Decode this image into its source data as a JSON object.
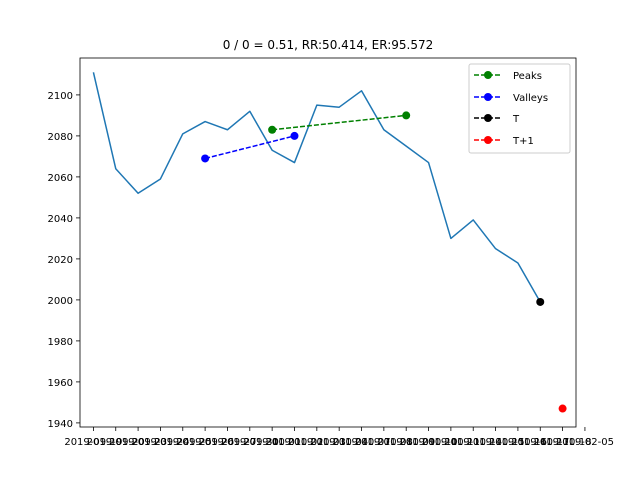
{
  "chart_data": {
    "type": "line",
    "title": "0 / 0 = 0.51, RR:50.414, ER:95.572",
    "xlabel": "",
    "ylabel": "",
    "x_tick_labels": [
      "2019-09-19",
      "2019-09-20",
      "2019-09-23",
      "2019-09-24",
      "2019-09-25",
      "2019-09-26",
      "2019-09-27",
      "2019-09-30",
      "2019-10-01",
      "2019-10-02",
      "2019-10-03",
      "2019-10-04",
      "2019-10-07",
      "2019-10-08",
      "2019-10-09",
      "2019-10-10",
      "2019-10-11",
      "2019-10-14",
      "2019-10-15",
      "2019-10-16",
      "2019-10-17",
      "2019-10-18",
      "2019-02-05"
    ],
    "yticks": [
      1940,
      1960,
      1980,
      2000,
      2020,
      2040,
      2060,
      2080,
      2100
    ],
    "ylim": [
      1938,
      2118
    ],
    "xlim": [
      -0.6,
      21.6
    ],
    "grid": false,
    "legend_position": "top-right",
    "price": {
      "color": "#1f77b4",
      "x": [
        0,
        1,
        2,
        3,
        4,
        5,
        6,
        7,
        8,
        9,
        10,
        11,
        12,
        13,
        14,
        15,
        16,
        17,
        18,
        19,
        20
      ],
      "y": [
        2111,
        2064,
        2052,
        2059,
        2081,
        2087,
        2083,
        2092,
        2073,
        2067,
        2095,
        2094,
        2102,
        2083,
        2075,
        2067,
        2030,
        2039,
        2025,
        2018,
        1999
      ]
    },
    "series": [
      {
        "name": "Peaks",
        "color": "#008000",
        "x": [
          8,
          14
        ],
        "y": [
          2083,
          2090
        ]
      },
      {
        "name": "Valleys",
        "color": "#0000ff",
        "x": [
          5,
          9
        ],
        "y": [
          2069,
          2080
        ]
      },
      {
        "name": "T",
        "color": "#000000",
        "x": [
          20
        ],
        "y": [
          1999
        ]
      },
      {
        "name": "T+1",
        "color": "#ff0000",
        "x": [
          21
        ],
        "y": [
          1947
        ]
      }
    ]
  }
}
